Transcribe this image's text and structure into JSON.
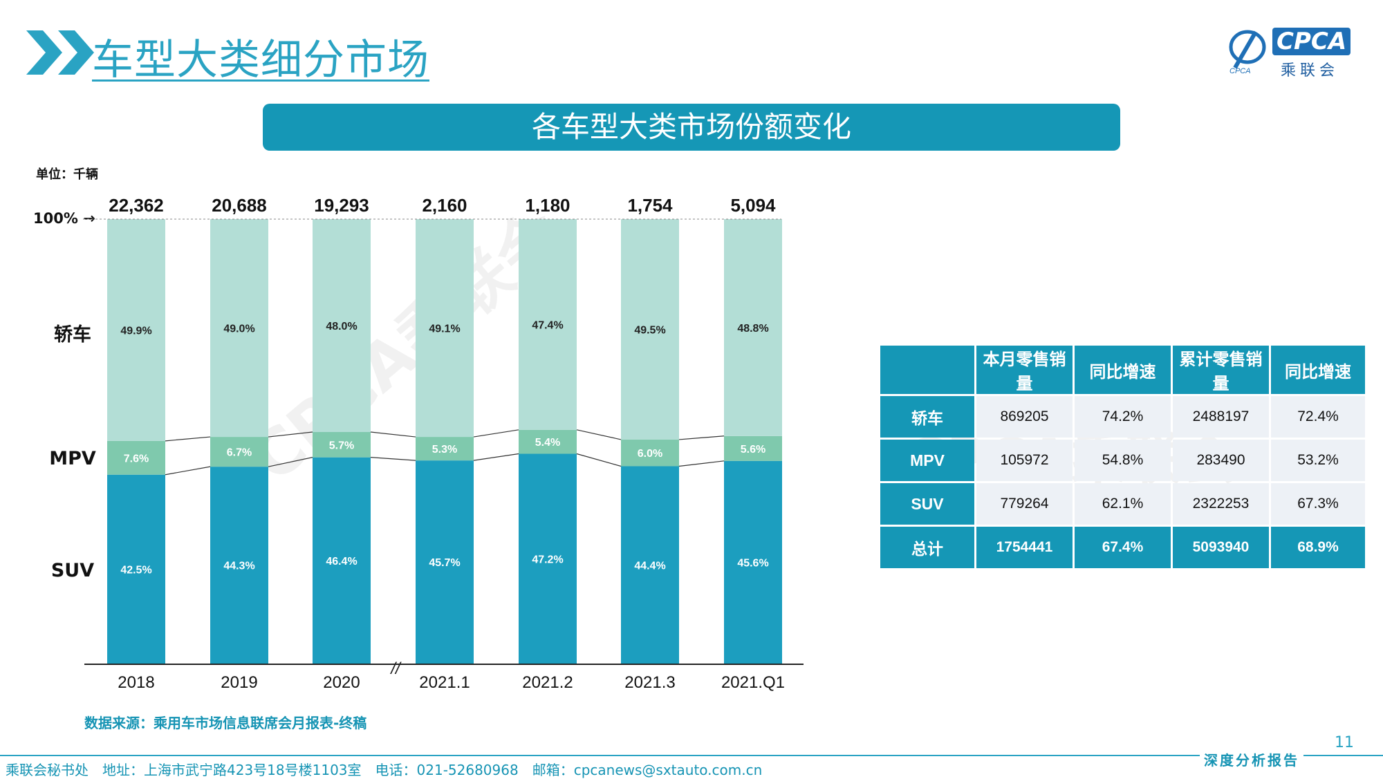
{
  "slide_title": "车型大类细分市场",
  "banner_title": "各车型大类市场份额变化",
  "unit_label": "单位：千辆",
  "pct_marker": "100% →",
  "logo": {
    "text": "CPCA",
    "cn": "乘联会",
    "sub": "CPCA"
  },
  "watermark": "CPCA乘联会",
  "colors": {
    "sedan": "#b3ded6",
    "mpv": "#7fc9ad",
    "suv": "#1c9ebf",
    "accent": "#2aa3c3"
  },
  "chart_data": {
    "type": "bar",
    "stacked": true,
    "normalized": true,
    "categories": [
      "2018",
      "2019",
      "2020",
      "2021.1",
      "2021.2",
      "2021.3",
      "2021.Q1"
    ],
    "totals": [
      "22,362",
      "20,688",
      "19,293",
      "2,160",
      "1,180",
      "1,754",
      "5,094"
    ],
    "series": [
      {
        "name": "SUV",
        "values": [
          42.5,
          44.3,
          46.4,
          45.7,
          47.2,
          44.4,
          45.6
        ],
        "labels": [
          "42.5%",
          "44.3%",
          "46.4%",
          "45.7%",
          "47.2%",
          "44.4%",
          "45.6%"
        ]
      },
      {
        "name": "MPV",
        "values": [
          7.6,
          6.7,
          5.7,
          5.3,
          5.4,
          6.0,
          5.6
        ],
        "labels": [
          "7.6%",
          "6.7%",
          "5.7%",
          "5.3%",
          "5.4%",
          "6.0%",
          "5.6%"
        ]
      },
      {
        "name": "轿车",
        "values": [
          49.9,
          49.0,
          48.0,
          49.1,
          47.4,
          49.5,
          48.8
        ],
        "labels": [
          "49.9%",
          "49.0%",
          "48.0%",
          "49.1%",
          "47.4%",
          "49.5%",
          "48.8%"
        ]
      }
    ],
    "axis_break": "//",
    "ylim": [
      0,
      100
    ]
  },
  "table": {
    "headers": [
      "",
      "本月零售销量",
      "同比增速",
      "累计零售销量",
      "同比增速"
    ],
    "rows": [
      [
        "轿车",
        "869205",
        "74.2%",
        "2488197",
        "72.4%"
      ],
      [
        "MPV",
        "105972",
        "54.8%",
        "283490",
        "53.2%"
      ],
      [
        "SUV",
        "779264",
        "62.1%",
        "2322253",
        "67.3%"
      ],
      [
        "总计",
        "1754441",
        "67.4%",
        "5093940",
        "68.9%"
      ]
    ]
  },
  "source": "数据来源：乘用车市场信息联席会月报表-终稿",
  "page_number": "11",
  "footer_info": "乘联会秘书处　地址：上海市武宁路423号18号楼1103室　电话：021-52680968　邮箱：cpcanews@sxtauto.com.cn",
  "footer_tag": "深度分析报告"
}
